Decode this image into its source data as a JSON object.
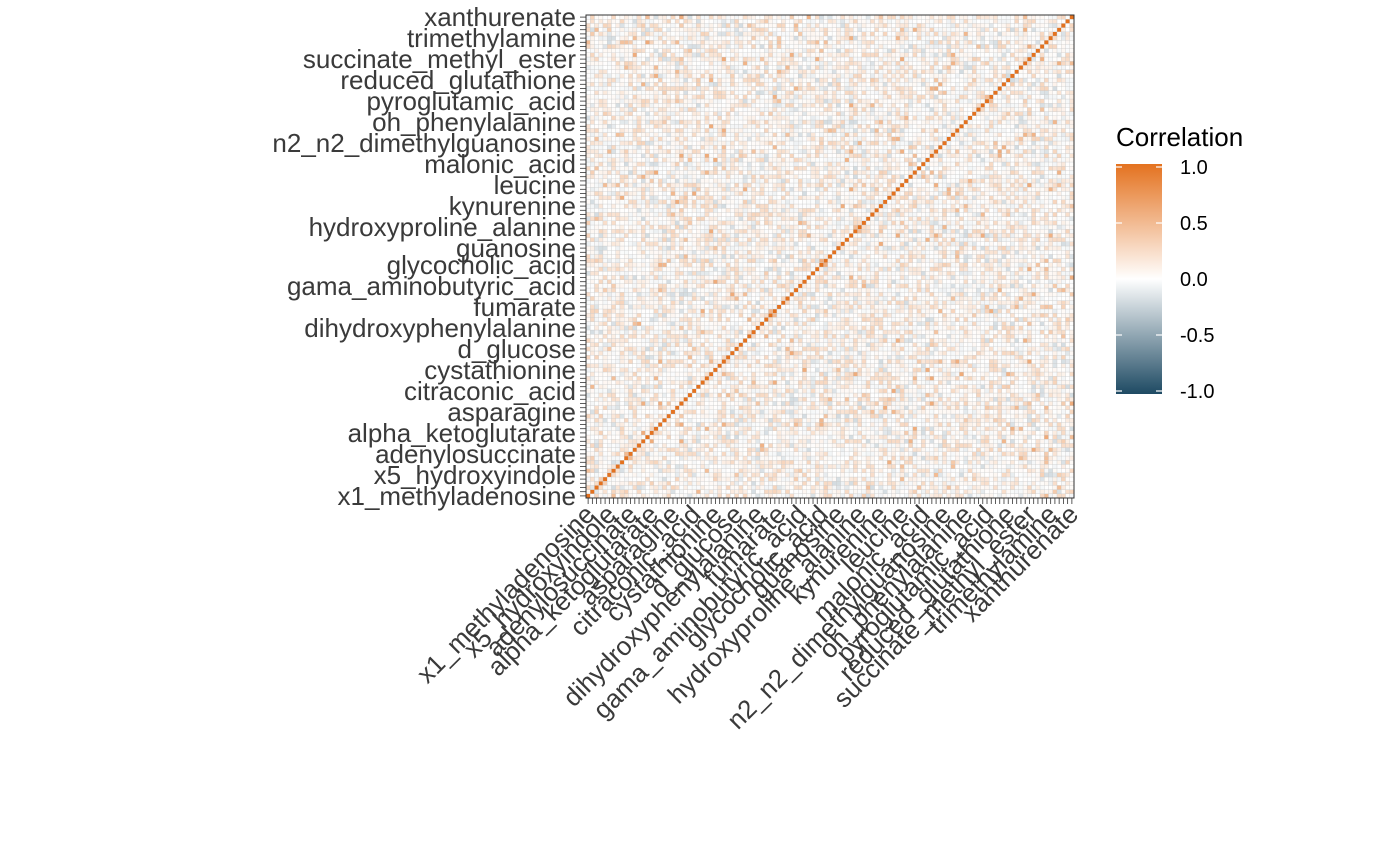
{
  "chart_data": {
    "type": "heatmap",
    "title": "",
    "xlabel": "",
    "ylabel": "",
    "n_variables": 115,
    "value_range": [
      -1.0,
      1.0
    ],
    "diagonal_value": 1.0,
    "visible_variable_labels": [
      "xanthurenate",
      "trimethylamine",
      "succinate_methyl_ester",
      "reduced_glutathione",
      "pyroglutamic_acid",
      "oh_phenylalanine",
      "n2_n2_dimethylguanosine",
      "malonic_acid",
      "leucine",
      "kynurenine",
      "hydroxyproline_alanine",
      "guanosine",
      "glycocholic_acid",
      "gama_aminobutyric_acid",
      "fumarate",
      "dihydroxyphenylalanine",
      "d_glucose",
      "cystathionine",
      "citraconic_acid",
      "asparagine",
      "alpha_ketoglutarate",
      "adenylosuccinate",
      "x5_hydroxyindole",
      "x1_methyladenosine"
    ],
    "legend": {
      "title": "Correlation",
      "position": "right",
      "tick_labels": [
        "1.0",
        "0.5",
        "0.0",
        "-0.5",
        "-1.0"
      ],
      "low_color": "#1e4a63",
      "mid_color": "#ffffff",
      "high_color": "#e4721f"
    },
    "grid": true
  }
}
